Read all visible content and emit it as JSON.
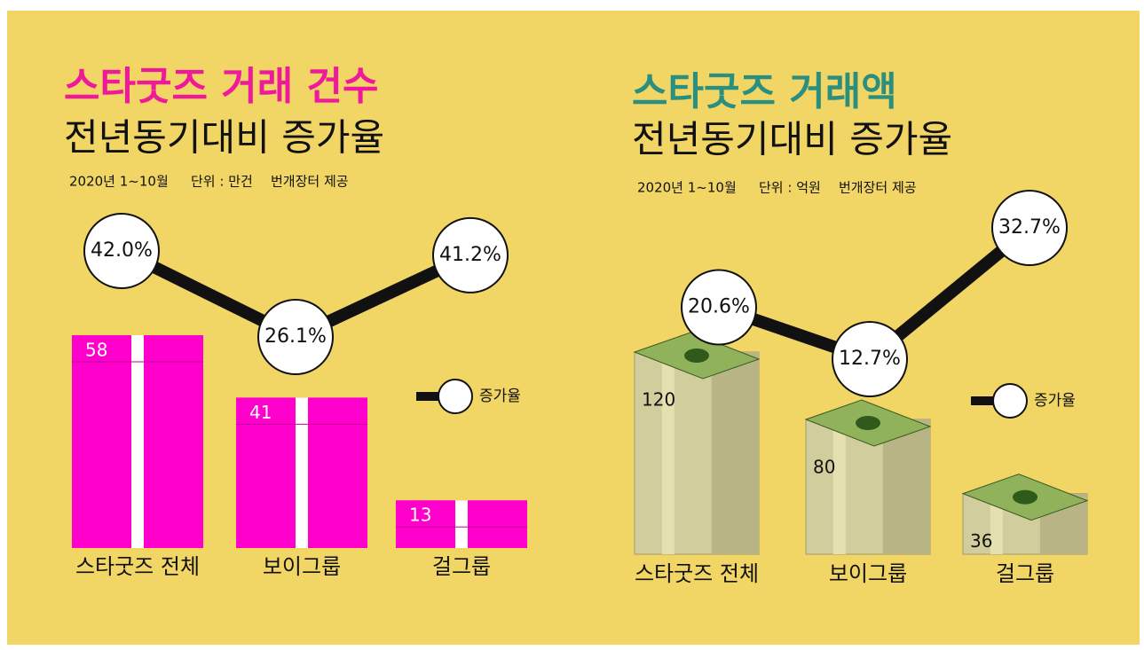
{
  "chart_data": [
    {
      "type": "bar-line",
      "title": "스타굿즈 거래 건수",
      "subtitle": "전년동기대비 증가율",
      "title_color": "#ee1a9b",
      "notes": [
        "2020년 1~10월",
        "단위 : 만건",
        "번개장터 제공"
      ],
      "categories": [
        "스타굿즈 전체",
        "보이그룹",
        "걸그룹"
      ],
      "series": [
        {
          "type": "bar",
          "color": "#ff00cc",
          "values": [
            58,
            41,
            13
          ]
        },
        {
          "type": "line",
          "name": "증가율",
          "color": "#111111",
          "values": [
            42.0,
            26.1,
            41.2
          ],
          "value_labels": [
            "42.0%",
            "26.1%",
            "41.2%"
          ]
        }
      ]
    },
    {
      "type": "bar-line",
      "title": "스타굿즈 거래액",
      "subtitle": "전년동기대비 증가율",
      "title_color": "#2a8f7f",
      "notes": [
        "2020년 1~10월",
        "단위 : 억원",
        "번개장터 제공"
      ],
      "categories": [
        "스타굿즈 전체",
        "보이그룹",
        "걸그룹"
      ],
      "series": [
        {
          "type": "bar",
          "color": "#d2cd9c",
          "values": [
            120,
            80,
            36
          ]
        },
        {
          "type": "line",
          "name": "증가율",
          "color": "#111111",
          "values": [
            20.6,
            12.7,
            32.7
          ],
          "value_labels": [
            "20.6%",
            "12.7%",
            "32.7%"
          ]
        }
      ]
    }
  ]
}
